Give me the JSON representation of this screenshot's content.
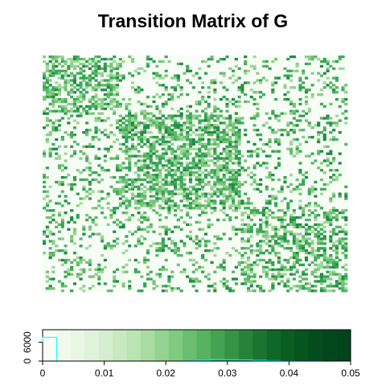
{
  "chart_data": [
    {
      "type": "heatmap",
      "title": "Transition Matrix of G",
      "xlabel": "",
      "ylabel": "",
      "n": 100,
      "grid": false,
      "block_boundaries": [
        0,
        25,
        65,
        100
      ],
      "block_density": [
        [
          0.55,
          0.22,
          0.22
        ],
        [
          0.22,
          0.62,
          0.22
        ],
        [
          0.22,
          0.22,
          0.5
        ]
      ],
      "value_range": [
        0,
        0.05
      ],
      "colors": {
        "background": "#f7fcf5",
        "low": "#e5f5e0",
        "mid": "#74c476",
        "high": "#00441b"
      }
    },
    {
      "type": "bar",
      "title": "",
      "xlabel": "",
      "ylabel": "",
      "x_ticks": [
        "0",
        "0.01",
        "0.02",
        "0.03",
        "0.04",
        "0.05"
      ],
      "y_ticks": [
        "0",
        "6000"
      ],
      "xlim": [
        0,
        0.05
      ],
      "ylim": [
        0,
        10000
      ],
      "bin_edges": [
        0,
        0.002273,
        0.004545,
        0.006818,
        0.009091,
        0.011364,
        0.013636,
        0.015909,
        0.018182,
        0.020455,
        0.022727,
        0.025,
        0.027273,
        0.029545,
        0.031818,
        0.034091,
        0.036364,
        0.038636,
        0.040909,
        0.043182,
        0.045455,
        0.047727,
        0.05
      ],
      "color_bins": [
        "#f7fcf5",
        "#f0f9ec",
        "#e8f6e3",
        "#dff3da",
        "#d4eecf",
        "#c8e9c2",
        "#bae4b3",
        "#a8dca2",
        "#95d391",
        "#81ca7f",
        "#6cbe6e",
        "#56b35f",
        "#43a352",
        "#359346",
        "#27833a",
        "#1b7430",
        "#0f6827",
        "#0b5e22",
        "#07541e",
        "#044c1d",
        "#02471c",
        "#00441b"
      ],
      "histogram_counts": [
        7600,
        0,
        0,
        0,
        0,
        0,
        0,
        0,
        0,
        0,
        60,
        300,
        500,
        450,
        350,
        250,
        150,
        80,
        40,
        20,
        10,
        0
      ],
      "histogram_color": "#00ffff"
    }
  ]
}
